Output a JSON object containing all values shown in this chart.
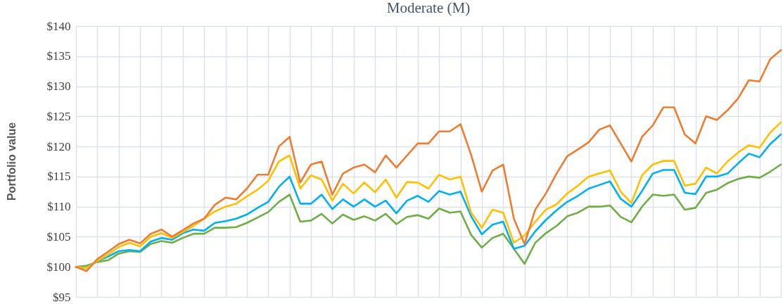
{
  "chart_data": {
    "type": "line",
    "title": "Moderate (M)",
    "ylabel": "Portfolio value",
    "categories": [
      null,
      null,
      null,
      null,
      null,
      null,
      null,
      null,
      null,
      null,
      null,
      null,
      null,
      null,
      null,
      null,
      null,
      null,
      null,
      null,
      null,
      null,
      null,
      null,
      null,
      null,
      null,
      null,
      null,
      null,
      null,
      null,
      null,
      null,
      null,
      null,
      null,
      null,
      null,
      null,
      null,
      null,
      null,
      null,
      null,
      null,
      null,
      null,
      null,
      null,
      null,
      null,
      null,
      null,
      null,
      null,
      null,
      null,
      null,
      null,
      null,
      null,
      null,
      null,
      null,
      null,
      null
    ],
    "ylim": [
      95,
      140
    ],
    "yticks": [
      {
        "value": 95,
        "label": "$95"
      },
      {
        "value": 100,
        "label": "$100"
      },
      {
        "value": 105,
        "label": "$105"
      },
      {
        "value": 110,
        "label": "$110"
      },
      {
        "value": 115,
        "label": "$115"
      },
      {
        "value": 120,
        "label": "$120"
      },
      {
        "value": 125,
        "label": "$125"
      },
      {
        "value": 130,
        "label": "$130"
      },
      {
        "value": 135,
        "label": "$135"
      },
      {
        "value": 140,
        "label": "$140"
      }
    ],
    "grid": true,
    "tick_labels": "y",
    "marker": "none",
    "line_style": "solid",
    "series": [
      {
        "color": "#ed7d31",
        "values": [
          100,
          99.3,
          101.3,
          102.5,
          103.8,
          104.5,
          103.9,
          105.5,
          106.2,
          105,
          106.1,
          107.2,
          108,
          110.3,
          111.5,
          111.2,
          113,
          115.3,
          115.3,
          120,
          121.6,
          114,
          117,
          117.5,
          112,
          115.5,
          116.5,
          117,
          115.7,
          118.5,
          116.5,
          118.5,
          120.5,
          120.5,
          122.5,
          122.5,
          123.7,
          118.6,
          112.5,
          116,
          117,
          108,
          103.8,
          109.5,
          112.2,
          115.5,
          118.4,
          119.5,
          120.7,
          122.8,
          123.5,
          120.5,
          117.5,
          121.6,
          123.5,
          126.5,
          126.5,
          122,
          120.5,
          125,
          124.4,
          126,
          128,
          131,
          130.8,
          134.5,
          136
        ]
      },
      {
        "color": "#ffc000",
        "values": [
          100,
          99.8,
          101,
          102,
          103.3,
          104,
          103.4,
          105,
          105.6,
          104.8,
          105.8,
          106.8,
          108,
          109.2,
          110,
          110.5,
          111.7,
          112.8,
          114.3,
          117.5,
          118.5,
          113,
          115.2,
          114.5,
          111,
          113.8,
          112.2,
          114,
          112.4,
          114.5,
          111.5,
          114.1,
          114,
          113,
          115.3,
          114.5,
          115,
          109,
          106.5,
          109.5,
          109,
          104,
          105.2,
          107.5,
          109.5,
          110.4,
          112.2,
          113.5,
          115,
          115.5,
          116,
          112.5,
          110.6,
          115.2,
          117,
          117.6,
          117.6,
          113.5,
          113.8,
          116.5,
          115.5,
          117.5,
          119,
          120.2,
          119.8,
          122.3,
          124
        ]
      },
      {
        "color": "#00b0f0",
        "values": [
          100,
          99.8,
          101,
          101.7,
          102.6,
          102.8,
          102.6,
          104.2,
          104.8,
          104.5,
          105.6,
          106.2,
          106,
          107.3,
          107.6,
          108,
          108.7,
          109.8,
          110.8,
          113.3,
          115,
          110.5,
          110.5,
          112,
          109.6,
          111.2,
          110,
          111.2,
          110,
          111,
          108.9,
          111,
          111.8,
          110.8,
          112.6,
          112,
          112.5,
          108.4,
          105.4,
          107,
          107.5,
          103,
          103.5,
          105.9,
          107.8,
          109.4,
          110.8,
          111.8,
          113,
          113.6,
          114.2,
          111.3,
          110,
          112.6,
          115.5,
          116.1,
          116.1,
          112.3,
          112.1,
          115,
          115,
          115.5,
          117.2,
          118.8,
          118.2,
          120.4,
          122
        ]
      },
      {
        "color": "#70ad47",
        "values": [
          100,
          100.2,
          100.8,
          101.1,
          102.2,
          102.6,
          102.5,
          103.8,
          104.3,
          104,
          104.8,
          105.5,
          105.5,
          106.5,
          106.5,
          106.6,
          107.3,
          108.2,
          109.1,
          110.8,
          112,
          107.5,
          107.7,
          108.8,
          107.2,
          108.7,
          107.8,
          108.4,
          107.7,
          108.8,
          107.1,
          108.3,
          108.6,
          108,
          109.7,
          109,
          109.2,
          105.3,
          103.2,
          104.8,
          105.5,
          103,
          100.5,
          104,
          105.6,
          106.8,
          108.4,
          109,
          110,
          110,
          110.2,
          108.3,
          107.4,
          110,
          112,
          111.8,
          112,
          109.5,
          109.8,
          112.3,
          112.8,
          113.9,
          114.6,
          115,
          114.8,
          115.8,
          117
        ]
      }
    ]
  }
}
